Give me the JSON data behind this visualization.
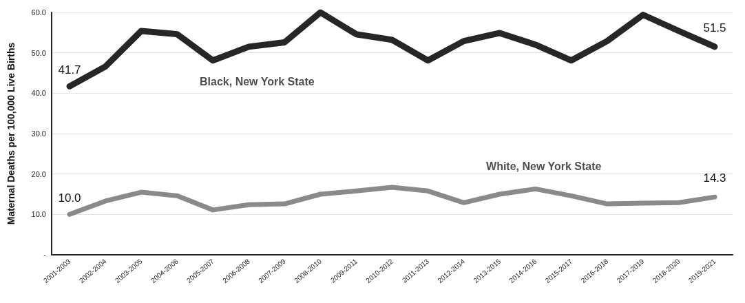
{
  "chart_data": {
    "type": "line",
    "ylabel": "Maternal Deaths per 100,000 Live Births",
    "categories": [
      "2001-2003",
      "2002-2004",
      "2003-2005",
      "2004-2006",
      "2005-2007",
      "2006-2008",
      "2007-2009",
      "2008-2010",
      "2009-2011",
      "2010-2012",
      "2011-2013",
      "2012-2014",
      "2013-2015",
      "2014-2016",
      "2015-2017",
      "2016-2018",
      "2017-2019",
      "2018-2020",
      "2019-2021"
    ],
    "series": [
      {
        "name": "Black, New York State",
        "color": "#262626",
        "values": [
          41.7,
          46.6,
          55.4,
          54.6,
          48.1,
          51.5,
          52.6,
          60.0,
          54.6,
          53.2,
          48.1,
          52.9,
          54.9,
          52.0,
          48.1,
          52.9,
          59.4,
          55.4,
          51.5
        ],
        "value_labels": [
          "41.7",
          null,
          null,
          null,
          null,
          null,
          null,
          null,
          null,
          null,
          null,
          null,
          null,
          null,
          null,
          null,
          null,
          null,
          "51.5"
        ]
      },
      {
        "name": "White, New York State",
        "color": "#8a8a8a",
        "values": [
          10.0,
          13.3,
          15.5,
          14.6,
          11.1,
          12.4,
          12.6,
          15.0,
          15.8,
          16.7,
          15.8,
          12.9,
          15.0,
          16.3,
          14.6,
          12.6,
          12.8,
          12.9,
          14.3
        ],
        "value_labels": [
          "10.0",
          null,
          null,
          null,
          null,
          null,
          null,
          null,
          null,
          null,
          null,
          null,
          null,
          null,
          null,
          null,
          null,
          null,
          "14.3"
        ]
      }
    ],
    "ylim": [
      0,
      60
    ],
    "yticks": [
      {
        "value": 0,
        "label": "-"
      },
      {
        "value": 10,
        "label": "10.0"
      },
      {
        "value": 20,
        "label": "20.0"
      },
      {
        "value": 30,
        "label": "30.0"
      },
      {
        "value": 40,
        "label": "40.0"
      },
      {
        "value": 50,
        "label": "50.0"
      },
      {
        "value": 60,
        "label": "60.0"
      }
    ],
    "grid": "y",
    "legend": false,
    "marker": "none",
    "line_style": "solid"
  }
}
